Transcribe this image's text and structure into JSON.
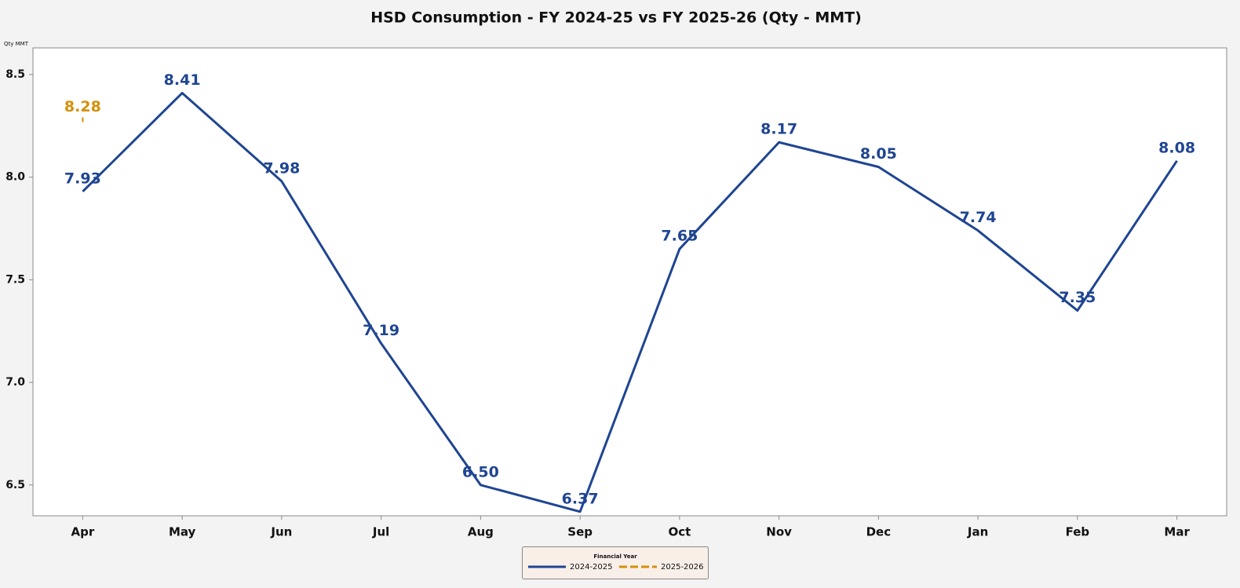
{
  "chart_data": {
    "type": "line",
    "title": "HSD Consumption - FY 2024-25 vs FY 2025-26 (Qty - MMT)",
    "y_label": "Qty MMT",
    "categories": [
      "Apr",
      "May",
      "Jun",
      "Jul",
      "Aug",
      "Sep",
      "Oct",
      "Nov",
      "Dec",
      "Jan",
      "Feb",
      "Mar"
    ],
    "series": [
      {
        "name": "2024-2025",
        "color": "#1f4592",
        "values": [
          7.93,
          8.41,
          7.98,
          7.19,
          6.5,
          6.37,
          7.65,
          8.17,
          8.05,
          7.74,
          7.35,
          8.08
        ],
        "value_labels": [
          "7.93",
          "8.41",
          "7.98",
          "7.19",
          "6.50",
          "6.37",
          "7.65",
          "8.17",
          "8.05",
          "7.74",
          "7.35",
          "8.08"
        ]
      },
      {
        "name": "2025-2026",
        "color": "#d4900a",
        "dash": true,
        "values": [
          8.28,
          null,
          null,
          null,
          null,
          null,
          null,
          null,
          null,
          null,
          null,
          null
        ],
        "value_labels": [
          "8.28",
          null,
          null,
          null,
          null,
          null,
          null,
          null,
          null,
          null,
          null,
          null
        ]
      }
    ],
    "ylim": [
      6.35,
      8.63
    ],
    "yticks": [
      6.5,
      {
        "value": 7,
        "label": "7.0"
      },
      7.5,
      {
        "value": 8,
        "label": "8.0"
      },
      8.5
    ],
    "legend_title": "Financial Year",
    "legend": "bottom"
  }
}
